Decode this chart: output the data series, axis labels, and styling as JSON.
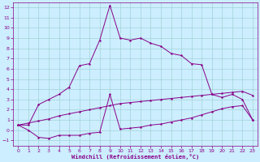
{
  "x": [
    0,
    1,
    2,
    3,
    4,
    5,
    6,
    7,
    8,
    9,
    10,
    11,
    12,
    13,
    14,
    15,
    16,
    17,
    18,
    19,
    20,
    21,
    22,
    23
  ],
  "line_top": [
    0.5,
    0.5,
    2.5,
    3.0,
    3.5,
    4.2,
    6.3,
    6.5,
    8.8,
    12.2,
    9.0,
    8.8,
    9.0,
    8.5,
    8.2,
    7.5,
    7.3,
    6.5,
    6.4,
    3.5,
    3.2,
    3.5,
    3.0,
    1.0
  ],
  "line_bottom": [
    0.5,
    0.0,
    -0.7,
    -0.8,
    -0.5,
    -0.5,
    -0.5,
    -0.3,
    -0.2,
    3.5,
    0.1,
    0.2,
    0.3,
    0.5,
    0.6,
    0.8,
    1.0,
    1.2,
    1.5,
    1.8,
    2.1,
    2.3,
    2.4,
    1.0
  ],
  "line_diag": [
    0.5,
    0.7,
    0.9,
    1.1,
    1.4,
    1.6,
    1.8,
    2.0,
    2.2,
    2.4,
    2.6,
    2.7,
    2.8,
    2.9,
    3.0,
    3.1,
    3.2,
    3.3,
    3.4,
    3.5,
    3.6,
    3.7,
    3.8,
    3.4
  ],
  "line_color": "#880088",
  "bg_color": "#cceeff",
  "grid_color": "#99cccc",
  "xlabel": "Windchill (Refroidissement éolien,°C)",
  "xlim": [
    -0.5,
    23.5
  ],
  "ylim": [
    -1.5,
    12.5
  ],
  "xticks": [
    0,
    1,
    2,
    3,
    4,
    5,
    6,
    7,
    8,
    9,
    10,
    11,
    12,
    13,
    14,
    15,
    16,
    17,
    18,
    19,
    20,
    21,
    22,
    23
  ],
  "yticks": [
    -1,
    0,
    1,
    2,
    3,
    4,
    5,
    6,
    7,
    8,
    9,
    10,
    11,
    12
  ],
  "tick_fontsize": 4.5,
  "xlabel_fontsize": 5.0,
  "lw": 0.7,
  "marker_size": 2.0
}
